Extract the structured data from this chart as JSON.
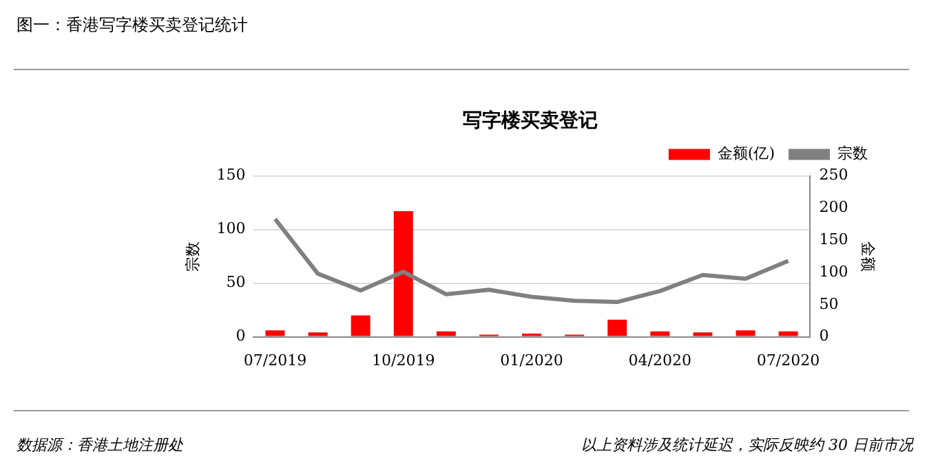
{
  "chart_data": {
    "type": "bar",
    "title": "写字楼买卖登记",
    "ylabel": "宗数",
    "y2label": "金额",
    "annotations": [
      "图一：香港写字楼买卖登记统计",
      "数据源：香港土地注册处",
      "以上资料涉及统计延迟，实际反映约 30 日前市况"
    ],
    "categories": [
      "07/2019",
      null,
      null,
      "10/2019",
      null,
      null,
      "01/2020",
      null,
      null,
      "04/2020",
      null,
      null,
      "07/2020"
    ],
    "series": [
      {
        "name": "金额(亿)",
        "axis": "y",
        "color": "#ff0000",
        "values": [
          6,
          4,
          20,
          117,
          5,
          2,
          3,
          2,
          16,
          5,
          4,
          6,
          5
        ]
      },
      {
        "name": "宗数",
        "type": "line",
        "axis": "y2",
        "color": "#808080",
        "values": [
          183,
          98,
          72,
          101,
          66,
          73,
          62,
          56,
          54,
          71,
          96,
          90,
          118
        ]
      }
    ],
    "ylim": [
      0,
      150
    ],
    "yticks": [
      0,
      50,
      100,
      150
    ],
    "y2lim": [
      0,
      250
    ],
    "y2ticks": [
      0,
      50,
      100,
      150,
      200,
      250
    ],
    "grid": "y",
    "legend": "top right",
    "marker": "none",
    "line_style": "solid"
  }
}
